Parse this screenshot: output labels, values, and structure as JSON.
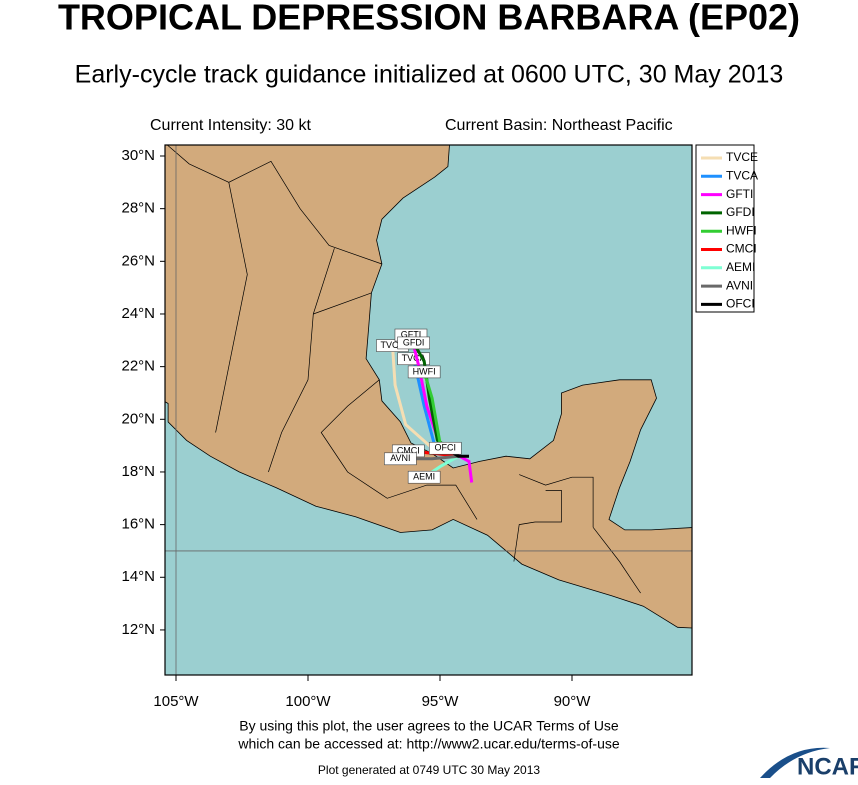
{
  "header": {
    "title": "TROPICAL DEPRESSION BARBARA (EP02)",
    "subtitle": "Early-cycle track guidance initialized at 0600 UTC, 30 May 2013",
    "intensity": "Current Intensity: 30 kt",
    "basin": "Current Basin: Northeast Pacific"
  },
  "map": {
    "lat_ticks": [
      {
        "value": 30,
        "label": "30°N"
      },
      {
        "value": 28,
        "label": "28°N"
      },
      {
        "value": 26,
        "label": "26°N"
      },
      {
        "value": 24,
        "label": "24°N"
      },
      {
        "value": 22,
        "label": "22°N"
      },
      {
        "value": 20,
        "label": "20°N"
      },
      {
        "value": 18,
        "label": "18°N"
      },
      {
        "value": 16,
        "label": "16°N"
      },
      {
        "value": 14,
        "label": "14°N"
      },
      {
        "value": 12,
        "label": "12°N"
      }
    ],
    "lon_ticks": [
      {
        "value": -105,
        "label": "105°W"
      },
      {
        "value": -100,
        "label": "100°W"
      },
      {
        "value": -95,
        "label": "95°W"
      },
      {
        "value": -90,
        "label": "90°W"
      }
    ],
    "grid_lat": [
      15
    ],
    "grid_lon": [
      -105
    ],
    "models": [
      {
        "name": "TVCE",
        "color": "#f5deb3",
        "track": [
          [
            -94.3,
            18.6
          ],
          [
            -95.4,
            19.0
          ],
          [
            -96.3,
            19.8
          ],
          [
            -96.7,
            21.3
          ],
          [
            -96.8,
            22.8
          ]
        ]
      },
      {
        "name": "TVCA",
        "color": "#1e90ff",
        "track": [
          [
            -94.3,
            18.6
          ],
          [
            -95.2,
            19.0
          ],
          [
            -95.6,
            20.5
          ],
          [
            -96.0,
            22.3
          ]
        ]
      },
      {
        "name": "GFTI",
        "color": "#ff00ff",
        "track": [
          [
            -93.8,
            17.6
          ],
          [
            -93.9,
            18.4
          ],
          [
            -95.0,
            19.0
          ],
          [
            -95.5,
            20.5
          ],
          [
            -95.8,
            22.0
          ],
          [
            -96.1,
            23.2
          ]
        ]
      },
      {
        "name": "GFDI",
        "color": "#006400",
        "track": [
          [
            -94.5,
            18.8
          ],
          [
            -95.1,
            19.2
          ],
          [
            -95.4,
            20.8
          ],
          [
            -95.6,
            22.2
          ],
          [
            -96.0,
            22.9
          ]
        ]
      },
      {
        "name": "HWFI",
        "color": "#32cd32",
        "track": [
          [
            -94.3,
            18.7
          ],
          [
            -95.0,
            19.1
          ],
          [
            -95.3,
            20.8
          ],
          [
            -95.6,
            21.8
          ]
        ]
      },
      {
        "name": "CMCI",
        "color": "#ff0000",
        "track": [
          [
            -94.3,
            18.6
          ],
          [
            -95.2,
            18.7
          ],
          [
            -96.2,
            18.8
          ]
        ]
      },
      {
        "name": "AEMI",
        "color": "#7fffd4",
        "track": [
          [
            -94.3,
            18.6
          ],
          [
            -95.0,
            18.2
          ],
          [
            -95.6,
            17.8
          ]
        ]
      },
      {
        "name": "AVNI",
        "color": "#696969",
        "track": [
          [
            -94.3,
            18.6
          ],
          [
            -95.3,
            18.5
          ],
          [
            -96.5,
            18.5
          ]
        ]
      },
      {
        "name": "OFCI",
        "color": "#000000",
        "track": [
          [
            -93.9,
            18.6
          ],
          [
            -94.3,
            18.6
          ],
          [
            -94.8,
            18.9
          ]
        ]
      }
    ]
  },
  "footer": {
    "terms1": "By using this plot, the user agrees to the UCAR Terms of Use",
    "terms2": "which can be accessed at: http://www2.ucar.edu/terms-of-use",
    "generated": "Plot generated at 0749 UTC   30 May 2013",
    "logo": "NCAR"
  }
}
